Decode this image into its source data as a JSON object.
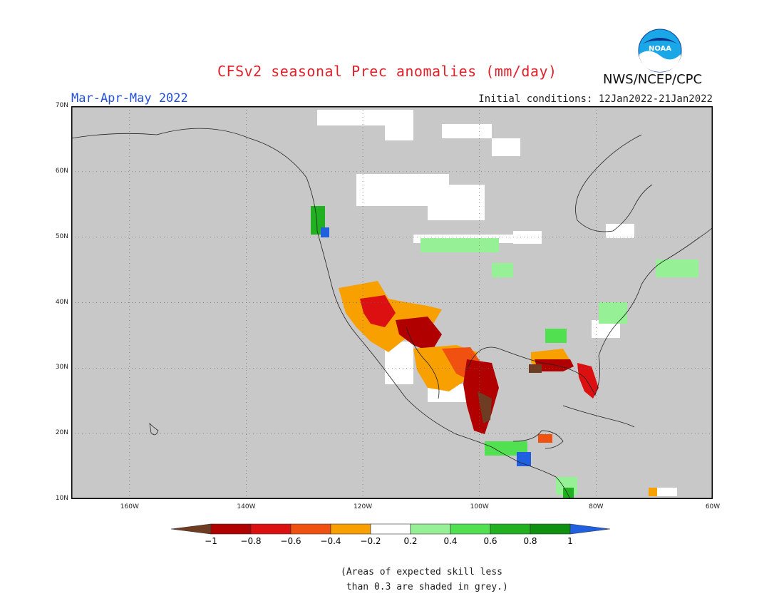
{
  "title": "CFSv2 seasonal Prec anomalies (mm/day)",
  "period": "Mar-Apr-May 2022",
  "initial_conditions": "Initial conditions: 12Jan2022-21Jan2022",
  "agency": "NWS/NCEP/CPC",
  "logo_text": "NOAA",
  "map": {
    "lat_range": [
      10,
      70
    ],
    "lon_range": [
      -170,
      -60
    ],
    "lat_ticks": [
      "10N",
      "20N",
      "30N",
      "40N",
      "50N",
      "60N",
      "70N"
    ],
    "lon_ticks": [
      "160W",
      "140W",
      "120W",
      "100W",
      "80W",
      "60W"
    ],
    "background_color": "#c8c8c8",
    "grid": "dotted",
    "regions": [
      {
        "name": "Southwest US",
        "category": "dry"
      },
      {
        "name": "Texas & Northern Mexico",
        "category": "dry"
      },
      {
        "name": "Florida",
        "category": "dry"
      },
      {
        "name": "Pacific Northwest coast",
        "category": "wet"
      },
      {
        "name": "Southeast US inland",
        "category": "wet"
      },
      {
        "name": "Northeast US",
        "category": "wet"
      },
      {
        "name": "Central America",
        "category": "wet"
      }
    ]
  },
  "colorbar": {
    "labels": [
      "-1",
      "-0.8",
      "-0.6",
      "-0.4",
      "-0.2",
      "0.2",
      "0.4",
      "0.6",
      "0.8",
      "1"
    ],
    "colors": [
      "#6e3b23",
      "#b00000",
      "#dc1010",
      "#f05010",
      "#f8a000",
      "#ffffff",
      "#96f096",
      "#50e050",
      "#20b020",
      "#109010",
      "#2060e0"
    ]
  },
  "note": "(Areas of expected skill less\n than 0.3 are shaded in grey.)"
}
